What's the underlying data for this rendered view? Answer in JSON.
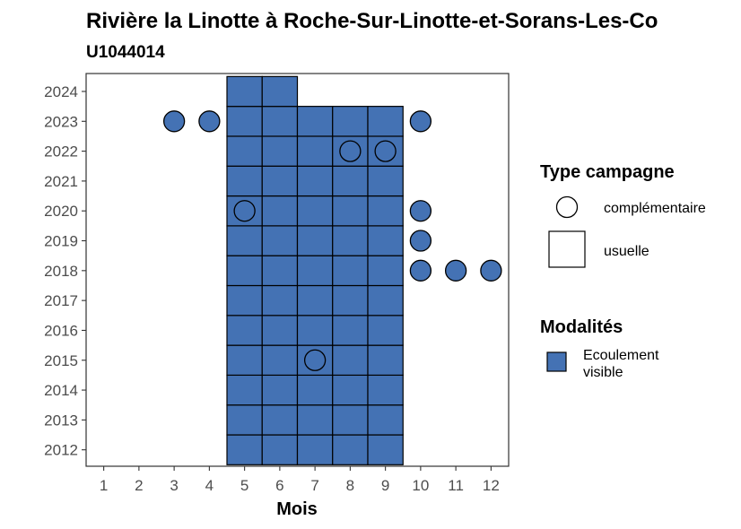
{
  "chart_data": {
    "type": "heatmap",
    "title": "Rivière la Linotte à Roche-Sur-Linotte-et-Sorans-Les-Co",
    "subtitle": "U1044014",
    "xlabel": "Mois",
    "ylabel": "",
    "x_ticks": [
      1,
      2,
      3,
      4,
      5,
      6,
      7,
      8,
      9,
      10,
      11,
      12
    ],
    "y_ticks": [
      2012,
      2013,
      2014,
      2015,
      2016,
      2017,
      2018,
      2019,
      2020,
      2021,
      2022,
      2023,
      2024
    ],
    "xlim": [
      0.5,
      12.5
    ],
    "ylim": [
      2011.45,
      2024.6
    ],
    "fill_color": "#4472b4",
    "usuelle": [
      {
        "year": 2012,
        "months": [
          5,
          6,
          7,
          8,
          9
        ]
      },
      {
        "year": 2013,
        "months": [
          5,
          6,
          7,
          8,
          9
        ]
      },
      {
        "year": 2014,
        "months": [
          5,
          6,
          7,
          8,
          9
        ]
      },
      {
        "year": 2015,
        "months": [
          5,
          6,
          7,
          8,
          9
        ]
      },
      {
        "year": 2016,
        "months": [
          5,
          6,
          7,
          8,
          9
        ]
      },
      {
        "year": 2017,
        "months": [
          5,
          6,
          7,
          8,
          9
        ]
      },
      {
        "year": 2018,
        "months": [
          5,
          6,
          7,
          8,
          9
        ]
      },
      {
        "year": 2019,
        "months": [
          5,
          6,
          7,
          8,
          9
        ]
      },
      {
        "year": 2020,
        "months": [
          5,
          6,
          7,
          8,
          9
        ]
      },
      {
        "year": 2021,
        "months": [
          5,
          6,
          7,
          8,
          9
        ]
      },
      {
        "year": 2022,
        "months": [
          5,
          6,
          7,
          8,
          9
        ]
      },
      {
        "year": 2023,
        "months": [
          5,
          6,
          7,
          8,
          9
        ]
      },
      {
        "year": 2024,
        "months": [
          5,
          6
        ]
      }
    ],
    "complementaire": [
      {
        "month": 3,
        "year": 2023,
        "filled": true
      },
      {
        "month": 4,
        "year": 2023,
        "filled": true
      },
      {
        "month": 10,
        "year": 2023,
        "filled": true
      },
      {
        "month": 8,
        "year": 2022,
        "filled": false
      },
      {
        "month": 9,
        "year": 2022,
        "filled": false
      },
      {
        "month": 5,
        "year": 2020,
        "filled": false
      },
      {
        "month": 10,
        "year": 2020,
        "filled": true
      },
      {
        "month": 10,
        "year": 2019,
        "filled": true
      },
      {
        "month": 10,
        "year": 2018,
        "filled": true
      },
      {
        "month": 11,
        "year": 2018,
        "filled": true
      },
      {
        "month": 12,
        "year": 2018,
        "filled": true
      },
      {
        "month": 7,
        "year": 2015,
        "filled": false
      }
    ],
    "legend": {
      "position": "right",
      "type_title": "Type campagne",
      "type_items": [
        {
          "label": "complémentaire",
          "shape": "circle"
        },
        {
          "label": "usuelle",
          "shape": "square"
        }
      ],
      "modalites_title": "Modalités",
      "modalites_items": [
        {
          "label_lines": [
            "Ecoulement",
            "visible"
          ],
          "color": "#4472b4"
        }
      ]
    },
    "grid": false
  }
}
